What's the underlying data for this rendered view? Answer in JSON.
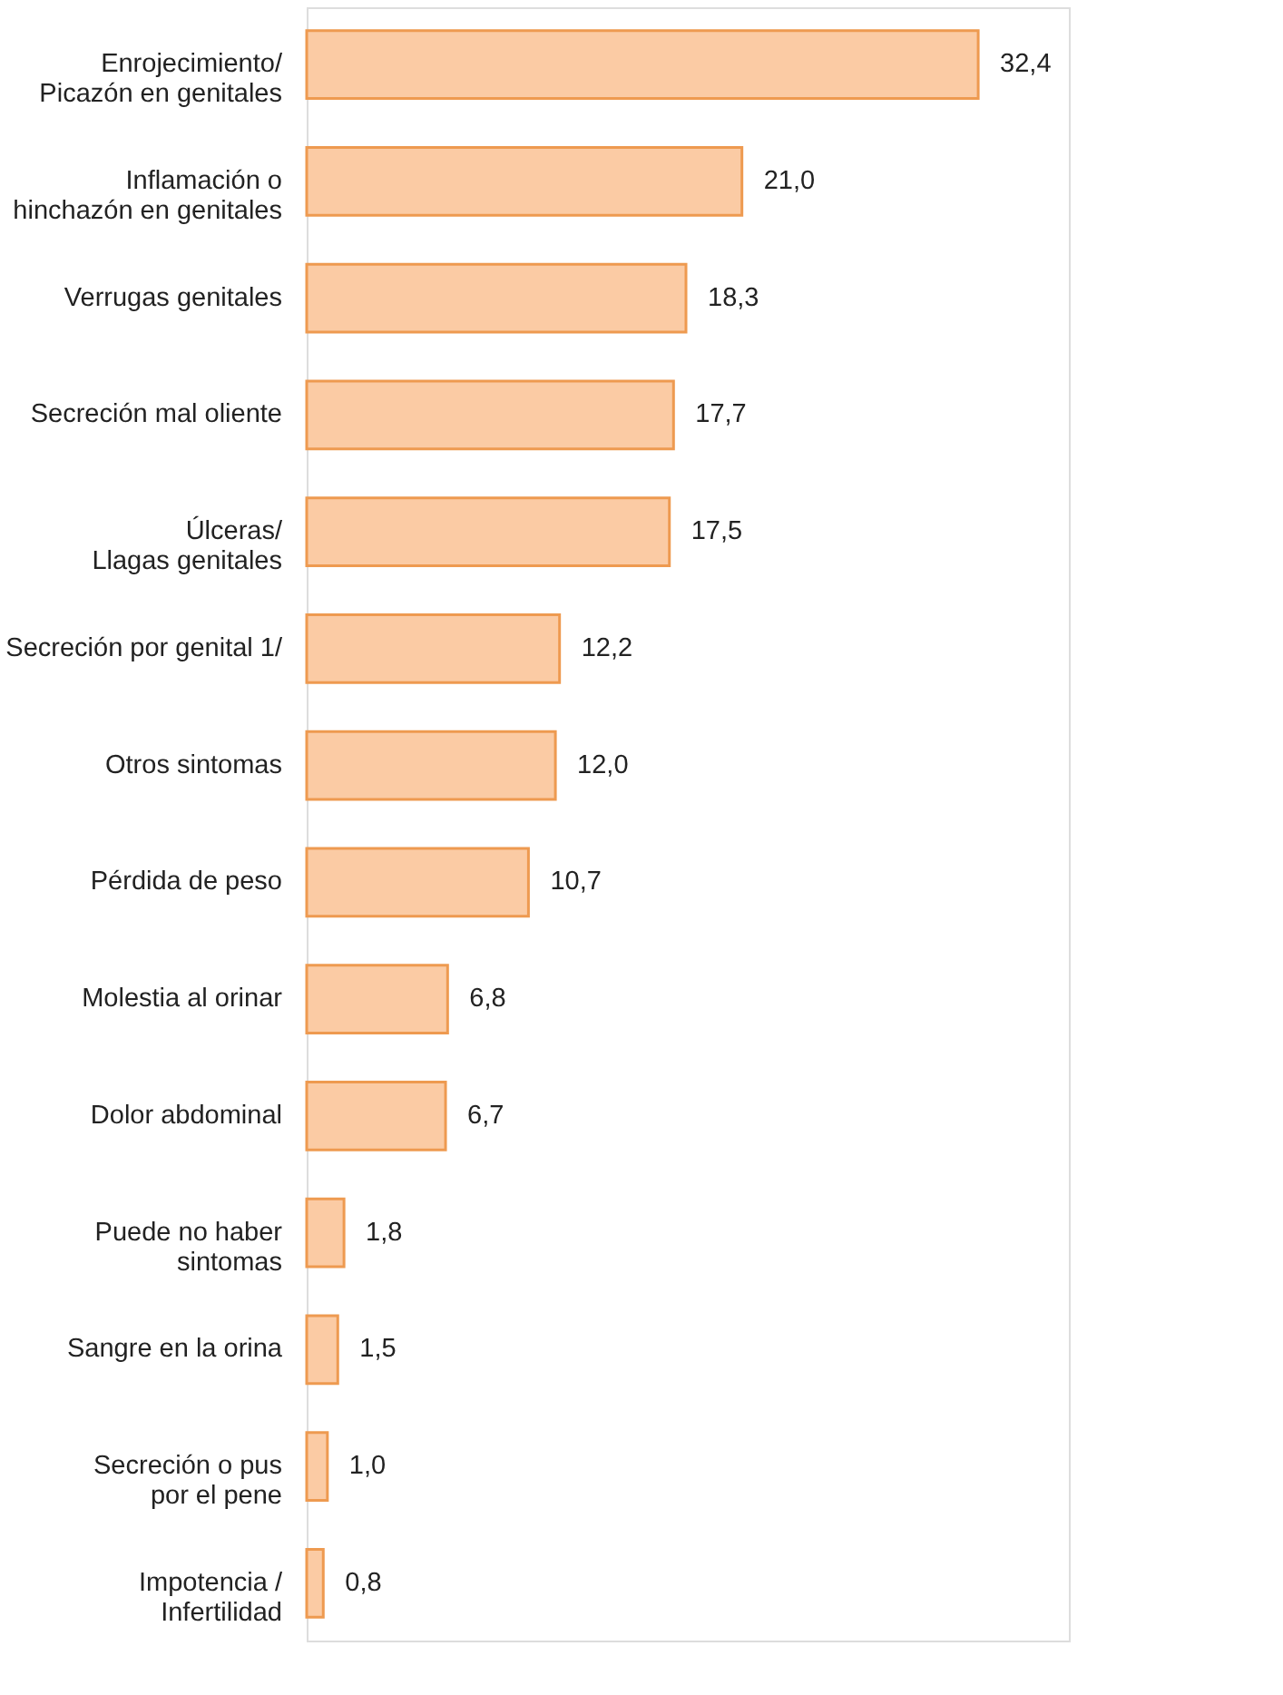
{
  "chart_data": {
    "type": "bar",
    "orientation": "horizontal",
    "categories": [
      "Enrojecimiento/\nPicazón en genitales",
      "Inflamación o\nhinchazón en genitales",
      "Verrugas genitales",
      "Secreción mal oliente",
      "Úlceras/\nLlagas genitales",
      "Secreción por genital 1/",
      "Otros sintomas",
      "Pérdida de peso",
      "Molestia al orinar",
      "Dolor abdominal",
      "Puede no haber\nsintomas",
      "Sangre en la orina",
      "Secreción o pus\npor el pene",
      "Impotencia /\nInfertilidad"
    ],
    "values": [
      32.4,
      21.0,
      18.3,
      17.7,
      17.5,
      12.2,
      12.0,
      10.7,
      6.8,
      6.7,
      1.8,
      1.5,
      1.0,
      0.8
    ],
    "value_labels": [
      "32,4",
      "21,0",
      "18,3",
      "17,7",
      "17,5",
      "12,2",
      "12,0",
      "10,7",
      "6,8",
      "6,7",
      "1,8",
      "1,5",
      "1,0",
      "0,8"
    ],
    "color": "#fbcba4"
  }
}
